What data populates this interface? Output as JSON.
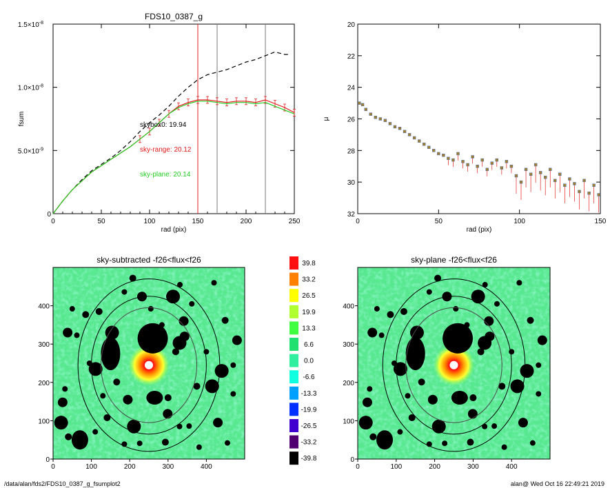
{
  "footer": {
    "path": "/data/alan/fds2/FDS10_0387_g_fsumplot2",
    "stamp": "alan@  Wed Oct 16 22:49:21 2019"
  },
  "chart_data": [
    {
      "type": "line",
      "title": "FDS10_0387_g",
      "xlabel": "rad (pix)",
      "ylabel": "fsum",
      "xlim": [
        0,
        250
      ],
      "ylim": [
        0,
        1.5e-08
      ],
      "xticks": [
        "0",
        "50",
        "100",
        "150",
        "200",
        "250"
      ],
      "yticks": [
        {
          "value": 0,
          "label": "0"
        },
        {
          "value": 5e-09,
          "label": "5.0×10",
          "exp": "-9"
        },
        {
          "value": 1e-08,
          "label": "1.0×10",
          "exp": "-8"
        },
        {
          "value": 1.5e-08,
          "label": "1.5×10",
          "exp": "-8"
        }
      ],
      "vlines": [
        {
          "x": 150,
          "color": "#e02020"
        },
        {
          "x": 170,
          "color": "#777777"
        },
        {
          "x": 220,
          "color": "#777777"
        }
      ],
      "annotations": [
        {
          "text": "skybox0: 19.94",
          "color": "#000000"
        },
        {
          "text": "sky-range: 20.12",
          "color": "#e01818"
        },
        {
          "text": "sky-plane: 20.14",
          "color": "#22cc22"
        }
      ],
      "series": [
        {
          "style": "dashed",
          "color": "#000000",
          "x": [
            0,
            10,
            20,
            30,
            40,
            50,
            60,
            70,
            80,
            90,
            100,
            110,
            120,
            130,
            140,
            150,
            160,
            170,
            180,
            190,
            200,
            210,
            220,
            230,
            240,
            245
          ],
          "y": [
            0,
            1e-09,
            1.9e-09,
            2.7e-09,
            3.4e-09,
            3.9e-09,
            4.4e-09,
            5e-09,
            5.7e-09,
            6.5e-09,
            7.2e-09,
            7.8e-09,
            8.5e-09,
            9.3e-09,
            1e-08,
            1.06e-08,
            1.1e-08,
            1.12e-08,
            1.14e-08,
            1.17e-08,
            1.2e-08,
            1.22e-08,
            1.25e-08,
            1.28e-08,
            1.26e-08,
            1.26e-08
          ]
        },
        {
          "style": "solid",
          "color": "#e01818",
          "errorbars": true,
          "x": [
            0,
            10,
            20,
            30,
            40,
            50,
            60,
            70,
            80,
            90,
            100,
            110,
            120,
            130,
            140,
            150,
            160,
            170,
            180,
            190,
            200,
            210,
            220,
            230,
            240,
            250
          ],
          "y": [
            0,
            1e-09,
            1.9e-09,
            2.6e-09,
            3.3e-09,
            3.8e-09,
            4.3e-09,
            4.8e-09,
            5.3e-09,
            5.9e-09,
            6.5e-09,
            7.2e-09,
            7.9e-09,
            8.5e-09,
            8.8e-09,
            9e-09,
            9e-09,
            8.9e-09,
            8.8e-09,
            8.9e-09,
            8.9e-09,
            8.8e-09,
            9e-09,
            8.7e-09,
            8.4e-09,
            8e-09
          ]
        },
        {
          "style": "solid",
          "color": "#22cc22",
          "x": [
            0,
            10,
            20,
            30,
            40,
            50,
            60,
            70,
            80,
            90,
            100,
            110,
            120,
            130,
            140,
            150,
            160,
            170,
            180,
            190,
            200,
            210,
            220,
            230,
            240,
            250
          ],
          "y": [
            0,
            1e-09,
            1.9e-09,
            2.6e-09,
            3.3e-09,
            3.8e-09,
            4.3e-09,
            4.8e-09,
            5.3e-09,
            5.9e-09,
            6.5e-09,
            7.2e-09,
            7.9e-09,
            8.4e-09,
            8.7e-09,
            8.9e-09,
            8.9e-09,
            8.8e-09,
            8.7e-09,
            8.8e-09,
            8.8e-09,
            8.7e-09,
            8.8e-09,
            8.5e-09,
            8.2e-09,
            7.9e-09
          ]
        }
      ]
    },
    {
      "type": "scatter",
      "title": "",
      "xlabel": "rad (pix)",
      "ylabel": "μ",
      "xlim": [
        0,
        150
      ],
      "ylim": [
        32,
        20
      ],
      "xticks": [
        "0",
        "50",
        "100",
        "150"
      ],
      "yticks": [
        "20",
        "22",
        "24",
        "26",
        "28",
        "30",
        "32"
      ],
      "series": [
        {
          "color": "#a08030",
          "x": [
            1,
            3,
            5,
            8,
            11,
            14,
            17,
            20,
            23,
            26,
            29,
            32,
            35,
            38,
            41,
            44,
            47,
            50,
            53,
            56,
            59,
            62,
            65,
            68,
            71,
            74,
            77,
            80,
            83,
            86,
            89,
            92,
            95,
            98,
            101,
            104,
            107,
            110,
            113,
            116,
            119,
            122,
            125,
            128,
            131,
            134,
            137,
            140,
            143,
            146,
            149
          ],
          "y": [
            25.0,
            25.1,
            25.4,
            25.7,
            25.9,
            26.0,
            26.1,
            26.3,
            26.5,
            26.6,
            26.8,
            27.0,
            27.2,
            27.4,
            27.6,
            27.8,
            28.0,
            28.2,
            28.3,
            28.5,
            28.6,
            28.2,
            28.7,
            28.9,
            28.4,
            29.0,
            28.6,
            29.2,
            28.8,
            28.6,
            29.1,
            28.7,
            29.0,
            29.6,
            30.0,
            29.2,
            29.5,
            28.9,
            29.4,
            29.7,
            29.2,
            29.9,
            29.5,
            30.2,
            29.8,
            30.1,
            30.6,
            29.9,
            30.7,
            30.2,
            30.8
          ]
        }
      ]
    },
    {
      "type": "heatmap",
      "title": "sky-subtracted -f26<flux<f26",
      "xlim": [
        0,
        500
      ],
      "ylim": [
        0,
        500
      ],
      "xticks": [
        "0",
        "100",
        "200",
        "300",
        "400"
      ],
      "yticks": [
        "0",
        "100",
        "200",
        "300",
        "400"
      ],
      "center": [
        250,
        245
      ],
      "ellipses": [
        {
          "rx": 185,
          "ry": 225,
          "color": "#000000"
        },
        {
          "rx": 150,
          "ry": 180,
          "color": "#000000"
        },
        {
          "rx": 125,
          "ry": 150,
          "color": "#4a4a4a"
        }
      ]
    },
    {
      "type": "heatmap",
      "title": "sky-plane -f26<flux<f26",
      "xlim": [
        0,
        500
      ],
      "ylim": [
        0,
        500
      ],
      "xticks": [
        "0",
        "100",
        "200",
        "300",
        "400"
      ],
      "yticks": [
        "0",
        "100",
        "200",
        "300",
        "400"
      ],
      "center": [
        250,
        245
      ],
      "ellipses": [
        {
          "rx": 185,
          "ry": 225,
          "color": "#000000"
        },
        {
          "rx": 150,
          "ry": 180,
          "color": "#000000"
        },
        {
          "rx": 125,
          "ry": 150,
          "color": "#4a4a4a"
        }
      ]
    }
  ],
  "colorbar": {
    "labels": [
      "39.8",
      "33.2",
      "26.5",
      "19.9",
      "13.3",
      "6.6",
      "0.0",
      "-6.6",
      "-13.3",
      "-19.9",
      "-26.5",
      "-33.2",
      "-39.8"
    ],
    "colors": [
      "#ff1010",
      "#ff8000",
      "#ffff00",
      "#b0ff30",
      "#40ff40",
      "#20e070",
      "#30f0a0",
      "#10ffe0",
      "#00a0ff",
      "#0030ff",
      "#4000d0",
      "#500070",
      "#000000"
    ]
  },
  "masks": [
    [
      21,
      95
    ],
    [
      50,
      392
    ],
    [
      62,
      323
    ],
    [
      85,
      377
    ],
    [
      31,
      183
    ],
    [
      38,
      330
    ],
    [
      120,
      385
    ],
    [
      154,
      330
    ],
    [
      186,
      436
    ],
    [
      208,
      472
    ],
    [
      232,
      424
    ],
    [
      255,
      392
    ],
    [
      261,
      325
    ],
    [
      284,
      350
    ],
    [
      313,
      424
    ],
    [
      341,
      360
    ],
    [
      362,
      405
    ],
    [
      420,
      460
    ],
    [
      449,
      362
    ],
    [
      331,
      455
    ],
    [
      195,
      155
    ],
    [
      211,
      85
    ],
    [
      186,
      39
    ],
    [
      226,
      41
    ],
    [
      293,
      44
    ],
    [
      299,
      118
    ],
    [
      330,
      85
    ],
    [
      375,
      190
    ],
    [
      415,
      190
    ],
    [
      470,
      170
    ],
    [
      430,
      95
    ],
    [
      381,
      31
    ],
    [
      355,
      86
    ],
    [
      166,
      201
    ],
    [
      158,
      262
    ],
    [
      111,
      235
    ],
    [
      141,
      108
    ],
    [
      110,
      71
    ],
    [
      60,
      38
    ],
    [
      40,
      58
    ],
    [
      25,
      148
    ],
    [
      400,
      280
    ],
    [
      440,
      230
    ],
    [
      470,
      245
    ],
    [
      455,
      42
    ],
    [
      480,
      310
    ],
    [
      95,
      250
    ],
    [
      130,
      165
    ],
    [
      320,
      280
    ],
    [
      330,
      303
    ],
    [
      343,
      320
    ],
    [
      300,
      160
    ]
  ]
}
